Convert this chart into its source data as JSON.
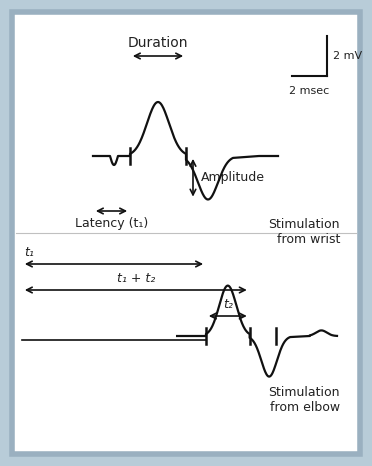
{
  "fig_bg": "#b8ccd8",
  "inner_bg": "#ffffff",
  "border_color": "#9ab0c0",
  "line_color": "#111111",
  "text_color": "#222222",
  "font_size": 9,
  "font_size_scale": 8,
  "top_waveform": {
    "label": "Stimulation\nfrom wrist"
  },
  "bottom_waveform": {
    "label": "Stimulation\nfrom elbow"
  },
  "scale_bar": {
    "v_label": "2 mV",
    "h_label": "2 msec"
  },
  "annotations_top": {
    "duration_label": "Duration",
    "amplitude_label": "Amplitude",
    "latency_label": "Latency (t₁)"
  },
  "annotations_bottom": {
    "t1_label": "t₁",
    "t1t2_label": "t₁ + t₂",
    "t2_label": "t₂"
  }
}
